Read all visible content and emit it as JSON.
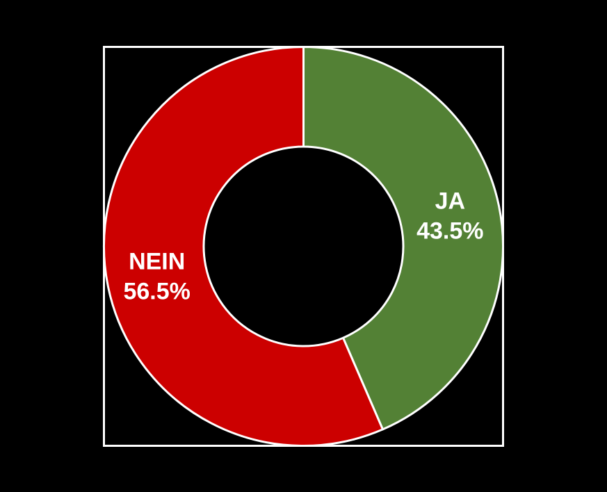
{
  "page": {
    "background_color": "#000000"
  },
  "chart_data": {
    "type": "pie",
    "subtype": "donut",
    "title": "",
    "categories": [
      "JA",
      "NEIN"
    ],
    "values": [
      43.5,
      56.5
    ],
    "value_labels": [
      "43.5%",
      "56.5%"
    ],
    "slice_colors": [
      "#538135",
      "#CC0000"
    ],
    "label_color": "#FFFFFF",
    "wedge_edge_color": "#FFFFFF",
    "frame_color": "#FFFFFF",
    "background_color": "#000000",
    "start_angle_deg": 90,
    "direction": "clockwise",
    "donut_hole_ratio": 0.5,
    "label_radius_ratio": 0.75,
    "legend": "none",
    "grid": "off"
  }
}
